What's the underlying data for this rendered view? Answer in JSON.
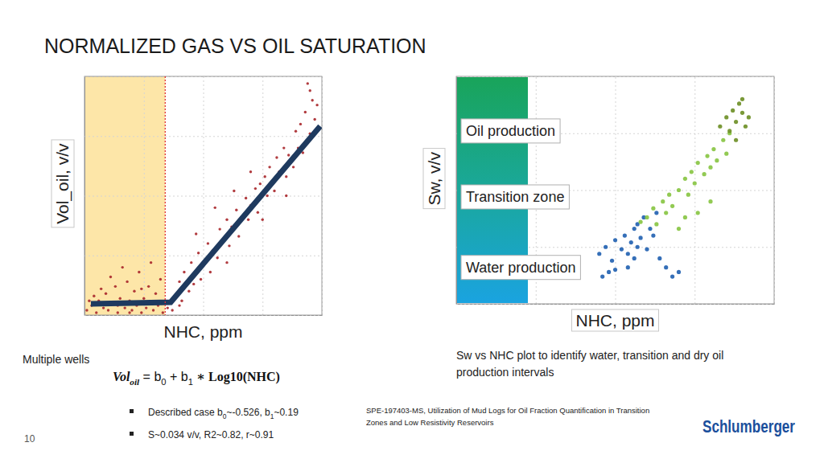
{
  "slide": {
    "title": "NORMALIZED GAS VS OIL SATURATION",
    "left_caption": "Multiple wells",
    "equation": [
      "Vol",
      "oil",
      " = b",
      "0",
      " + b",
      "1",
      " ∗ Log10(NHC)"
    ],
    "bullets": [
      [
        "Described case b",
        "0",
        "~-0.526, b",
        "1",
        "~0.19"
      ],
      [
        "S~0.034 v/v, R2~0.82, r~0.91"
      ]
    ],
    "right_caption": [
      "Sw vs NHC plot to identify water, transition and dry oil",
      "production intervals"
    ],
    "reference": [
      "SPE-197403-MS,  Utilization of Mud Logs for Oil Fraction Quantification in Transition",
      "Zones and Low Resistivity Reservoirs"
    ],
    "logo": "Schlumberger",
    "page": 10
  },
  "chart_data": [
    {
      "type": "scatter",
      "x_label": "NHC, ppm",
      "y_label": "Vol_oil, v/v",
      "xlim": [
        0,
        100
      ],
      "ylim": [
        0,
        100
      ],
      "xticks": [
        0,
        25,
        50,
        75,
        100
      ],
      "yticks": [
        0,
        25,
        50,
        75,
        100
      ],
      "grid": true,
      "tick_labels": false,
      "cutoff": 34,
      "series": [
        {
          "type": "scatter",
          "color": "#a8262a",
          "marker": "circle",
          "x": [
            1,
            3,
            5,
            6,
            8,
            9,
            10,
            12,
            13,
            14,
            15,
            17,
            18,
            19,
            20,
            21,
            22,
            23,
            24,
            25,
            26,
            27,
            28,
            29,
            30,
            31,
            32,
            33,
            34,
            11,
            16,
            7,
            4,
            2,
            28,
            24,
            19,
            14,
            35,
            37,
            39,
            40,
            40,
            41,
            42,
            44,
            45,
            46,
            48,
            49,
            50,
            52,
            53,
            54,
            56,
            57,
            58,
            60,
            61,
            62,
            64,
            65,
            66,
            68,
            69,
            70,
            72,
            73,
            74,
            76,
            77,
            78,
            80,
            81,
            82,
            84,
            85,
            86,
            88,
            89,
            90,
            91,
            92,
            93,
            95,
            96,
            97,
            94,
            95,
            98,
            55,
            63,
            70,
            47,
            60,
            75,
            85
          ],
          "values": [
            2,
            4,
            1,
            6,
            3,
            9,
            2,
            5,
            12,
            1,
            7,
            3,
            14,
            6,
            2,
            10,
            4,
            18,
            1,
            7,
            3,
            12,
            5,
            2,
            9,
            4,
            15,
            1,
            6,
            16,
            20,
            11,
            8,
            6,
            22,
            11,
            1,
            4,
            3,
            2,
            8,
            4,
            14,
            6,
            18,
            10,
            22,
            13,
            26,
            15,
            21,
            30,
            18,
            27,
            24,
            36,
            31,
            40,
            29,
            37,
            44,
            33,
            41,
            49,
            40,
            46,
            53,
            43,
            55,
            58,
            50,
            62,
            52,
            66,
            60,
            70,
            58,
            67,
            62,
            77,
            70,
            80,
            68,
            85,
            76,
            90,
            82,
            97,
            94,
            88,
            45,
            52,
            60,
            34,
            22,
            40,
            50
          ]
        },
        {
          "type": "line",
          "color": "#1e3a5f",
          "line_style": "solid",
          "x": [
            2.7,
            36.3,
            99.3
          ],
          "values": [
            4.7,
            5.4,
            79.1
          ]
        }
      ]
    },
    {
      "type": "scatter",
      "x_label": "NHC, ppm",
      "y_label": "Sw, v/v",
      "xlim": [
        0,
        100
      ],
      "ylim": [
        0,
        100
      ],
      "xticks": [
        0,
        25,
        50,
        75,
        100
      ],
      "yticks": [
        0,
        25,
        50,
        75,
        100
      ],
      "grid": true,
      "tick_labels": false,
      "annotations": [
        "Oil production",
        "Transition zone",
        "Water production"
      ],
      "series": [
        {
          "type": "scatter",
          "color": "#1f5fb0",
          "marker": "circle",
          "x": [
            45,
            47,
            49,
            50,
            52,
            53,
            54,
            55,
            56,
            57,
            58,
            56,
            54,
            60,
            62,
            64,
            66,
            68,
            70,
            50,
            57,
            59,
            61,
            63,
            46,
            48
          ],
          "values": [
            22,
            25,
            19,
            28,
            24,
            30,
            22,
            27,
            33,
            25,
            29,
            20,
            16,
            24,
            30,
            20,
            16,
            12,
            14,
            15,
            35,
            38,
            33,
            40,
            12,
            14
          ]
        },
        {
          "type": "scatter",
          "color": "#86c440",
          "marker": "circle",
          "x": [
            58,
            60,
            62,
            63,
            65,
            66,
            67,
            68,
            70,
            72,
            73,
            74,
            75,
            76,
            78,
            79,
            80,
            81,
            82,
            84,
            85,
            86,
            80,
            76,
            72,
            70
          ],
          "values": [
            36,
            38,
            42,
            35,
            45,
            40,
            48,
            43,
            50,
            55,
            48,
            58,
            53,
            62,
            57,
            65,
            60,
            68,
            63,
            72,
            66,
            75,
            45,
            40,
            38,
            33
          ]
        },
        {
          "type": "scatter",
          "color": "#6b8e23",
          "marker": "circle",
          "x": [
            83,
            85,
            86,
            87,
            88,
            89,
            90,
            91,
            88,
            92,
            90
          ],
          "values": [
            78,
            82,
            76,
            85,
            80,
            88,
            84,
            78,
            72,
            82,
            90
          ]
        }
      ]
    }
  ]
}
